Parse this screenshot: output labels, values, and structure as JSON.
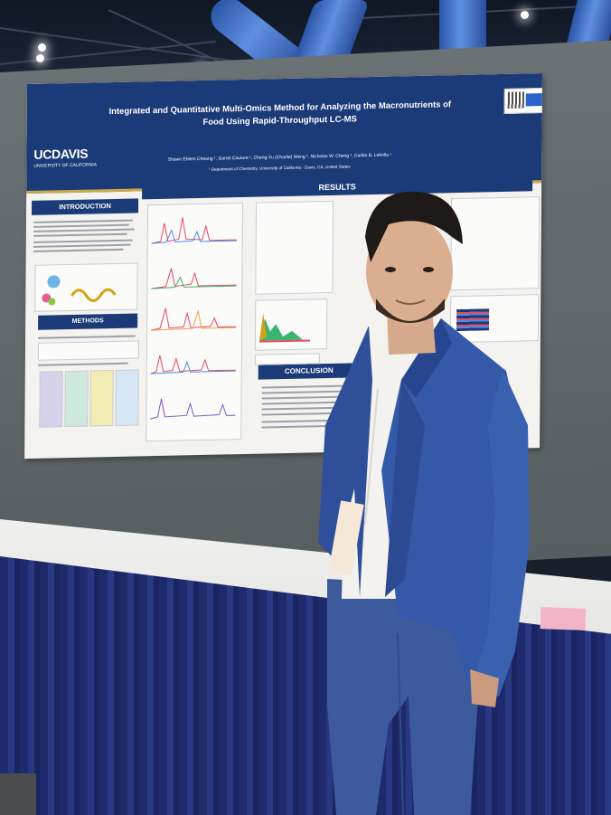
{
  "poster": {
    "logo": "UCDAVIS",
    "logo_sub": "UNIVERSITY OF CALIFORNIA",
    "title_line1": "Integrated and Quantitative Multi-Omics Method for Analyzing the Macronutrients of",
    "title_line2": "Food Using Rapid-Throughput LC-MS",
    "authors": "Shawn Ehlers Cheang ¹, Garret Couture ¹, Cheng-Yu (Charlie) Weng ¹, Nicholas W. Cheng ¹, Carlito B. Lebrilla ¹",
    "affiliation": "¹ Department of Chemistry, University of California - Davis, CA, United States",
    "sections": {
      "introduction": "INTRODUCTION",
      "results": "RESULTS",
      "methods": "METHODS",
      "conclusion": "CONCLUSION"
    }
  },
  "colors": {
    "poster_blue": "#1b3a78",
    "gold_rule": "#c9a94b",
    "suit": "#2f4f9a",
    "table_skirt": "#1e2a6b"
  }
}
